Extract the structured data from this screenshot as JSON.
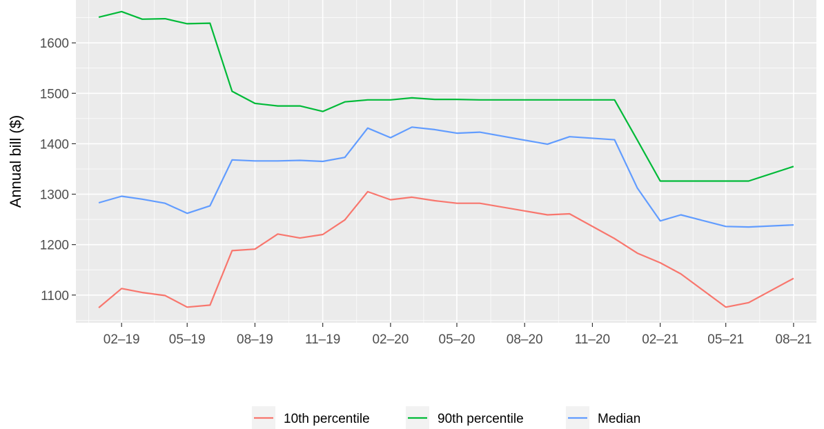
{
  "chart_data": {
    "type": "line",
    "title": "",
    "xlabel": "",
    "ylabel": "Annual bill ($)",
    "x": [
      "2019-01-01",
      "2019-02-01",
      "2019-03-01",
      "2019-04-01",
      "2019-05-01",
      "2019-06-01",
      "2019-07-01",
      "2019-08-01",
      "2019-09-01",
      "2019-10-01",
      "2019-11-01",
      "2019-12-01",
      "2020-01-01",
      "2020-02-01",
      "2020-03-01",
      "2020-04-01",
      "2020-05-01",
      "2020-06-01",
      "2020-09-01",
      "2020-10-01",
      "2020-12-01",
      "2021-01-01",
      "2021-02-01",
      "2021-03-01",
      "2021-05-01",
      "2021-06-01",
      "2021-08-01"
    ],
    "xlim": [
      "2018-12-01",
      "2021-09-01"
    ],
    "ylim": [
      1045,
      1685
    ],
    "x_ticks": [
      {
        "date": "2019-02-01",
        "label": "02–19"
      },
      {
        "date": "2019-05-01",
        "label": "05–19"
      },
      {
        "date": "2019-08-01",
        "label": "08–19"
      },
      {
        "date": "2019-11-01",
        "label": "11–19"
      },
      {
        "date": "2020-02-01",
        "label": "02–20"
      },
      {
        "date": "2020-05-01",
        "label": "05–20"
      },
      {
        "date": "2020-08-01",
        "label": "08–20"
      },
      {
        "date": "2020-11-01",
        "label": "11–20"
      },
      {
        "date": "2021-02-01",
        "label": "02–21"
      },
      {
        "date": "2021-05-01",
        "label": "05–21"
      },
      {
        "date": "2021-08-01",
        "label": "08–21"
      }
    ],
    "y_ticks": [
      1100,
      1200,
      1300,
      1400,
      1500,
      1600
    ],
    "grid": true,
    "legend_position": "bottom",
    "series": [
      {
        "name": "10th percentile",
        "color": "#F8766D",
        "values": [
          1075,
          1113,
          1105,
          1099,
          1076,
          1080,
          1188,
          1191,
          1221,
          1213,
          1220,
          1249,
          1305,
          1289,
          1294,
          1287,
          1282,
          1282,
          1259,
          1261,
          1212,
          1183,
          1164,
          1142,
          1076,
          1085,
          1133
        ]
      },
      {
        "name": "90th percentile",
        "color": "#00BA38",
        "values": [
          1651,
          1662,
          1647,
          1648,
          1638,
          1639,
          1504,
          1480,
          1475,
          1475,
          1464,
          1483,
          1487,
          1487,
          1491,
          1488,
          1488,
          1487,
          1487,
          1487,
          1487,
          1407,
          1326,
          1326,
          1326,
          1326,
          1355
        ]
      },
      {
        "name": "Median",
        "color": "#619CFF",
        "values": [
          1283,
          1296,
          1290,
          1282,
          1262,
          1277,
          1368,
          1366,
          1366,
          1367,
          1365,
          1373,
          1431,
          1412,
          1433,
          1428,
          1421,
          1423,
          1399,
          1414,
          1408,
          1312,
          1247,
          1259,
          1236,
          1235,
          1239
        ]
      }
    ]
  }
}
